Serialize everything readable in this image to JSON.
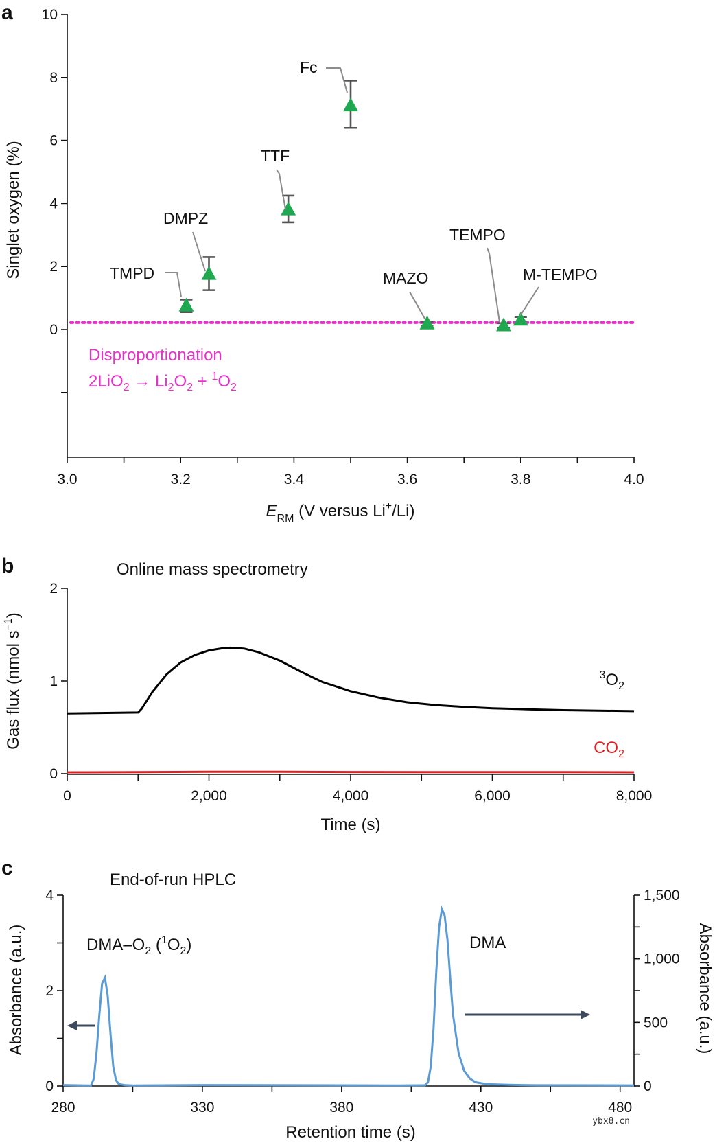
{
  "panels": {
    "a": "a",
    "b": "b",
    "c": "c"
  },
  "watermark": "ybx8.cn",
  "chart_data": [
    {
      "id": "a",
      "type": "scatter",
      "xlabel_main": "E",
      "xlabel_sub": "RM",
      "xlabel_rest": " (V versus Li",
      "xlabel_sup": "+",
      "xlabel_end": "/Li)",
      "ylabel": "Singlet oxygen (%)",
      "xlim": [
        3.0,
        4.0
      ],
      "ylim": [
        -4,
        10
      ],
      "xticks": [
        3.0,
        3.1,
        3.2,
        3.3,
        3.4,
        3.5,
        3.6,
        3.7,
        3.8,
        3.9,
        4.0
      ],
      "xtick_labels": [
        "3.0",
        "",
        "3.2",
        "",
        "3.4",
        "",
        "3.6",
        "",
        "3.8",
        "",
        "4.0"
      ],
      "yticks": [
        -2,
        0,
        2,
        4,
        6,
        8,
        10
      ],
      "ytick_labels": [
        "",
        "0",
        "2",
        "4",
        "6",
        "8",
        "10"
      ],
      "points": [
        {
          "name": "TMPD",
          "x": 3.21,
          "y": 0.75,
          "err_lo": 0.55,
          "err_hi": 0.95
        },
        {
          "name": "DMPZ",
          "x": 3.25,
          "y": 1.75,
          "err_lo": 1.25,
          "err_hi": 2.3
        },
        {
          "name": "TTF",
          "x": 3.39,
          "y": 3.8,
          "err_lo": 3.4,
          "err_hi": 4.25
        },
        {
          "name": "Fc",
          "x": 3.5,
          "y": 7.1,
          "err_lo": 6.4,
          "err_hi": 7.9
        },
        {
          "name": "MAZO",
          "x": 3.635,
          "y": 0.18,
          "err_lo": 0.12,
          "err_hi": 0.24
        },
        {
          "name": "TEMPO",
          "x": 3.77,
          "y": 0.12,
          "err_lo": 0.05,
          "err_hi": 0.2
        },
        {
          "name": "M-TEMPO",
          "x": 3.8,
          "y": 0.3,
          "err_lo": 0.18,
          "err_hi": 0.4
        }
      ],
      "reference_line": {
        "y": 0.22,
        "color": "#e632c8",
        "style": "dotted"
      },
      "annotation_line1": "Disproportionation",
      "annotation_line2": {
        "p1": "2LiO",
        "s1": "2",
        "p2": " → Li",
        "s2": "2",
        "p3": "O",
        "s3": "2",
        "p4": " + ",
        "sup": "1",
        "p5": "O",
        "s5": "2"
      },
      "marker_color": "#1fa84f"
    },
    {
      "id": "b",
      "type": "line",
      "title": "Online mass spectrometry",
      "xlabel": "Time (s)",
      "ylabel_main": "Gas flux (nmol s",
      "ylabel_sup": "−1",
      "ylabel_end": ")",
      "xlim": [
        0,
        8000
      ],
      "ylim": [
        0,
        2
      ],
      "xticks": [
        0,
        1000,
        2000,
        3000,
        4000,
        5000,
        6000,
        7000,
        8000
      ],
      "xtick_labels": [
        "0",
        "",
        "2,000",
        "",
        "4,000",
        "",
        "6,000",
        "",
        "8,000"
      ],
      "yticks": [
        0,
        1,
        2
      ],
      "ytick_labels": [
        "0",
        "1",
        "2"
      ],
      "series": [
        {
          "name": "3O2",
          "label_sup": "3",
          "label_main": "O",
          "label_sub": "2",
          "color": "#000000",
          "x": [
            0,
            1000,
            1050,
            1200,
            1400,
            1600,
            1800,
            2000,
            2200,
            2300,
            2500,
            2700,
            3000,
            3300,
            3600,
            4000,
            4400,
            4800,
            5200,
            5600,
            6000,
            6500,
            7000,
            7500,
            8000
          ],
          "y": [
            0.65,
            0.66,
            0.7,
            0.88,
            1.07,
            1.2,
            1.28,
            1.33,
            1.355,
            1.36,
            1.35,
            1.31,
            1.22,
            1.1,
            0.99,
            0.89,
            0.82,
            0.77,
            0.74,
            0.72,
            0.705,
            0.695,
            0.685,
            0.68,
            0.675
          ]
        },
        {
          "name": "CO2",
          "label_main": "CO",
          "label_sub": "2",
          "color": "#e02020",
          "x": [
            0,
            1000,
            2000,
            3000,
            4000,
            5000,
            6000,
            7000,
            8000
          ],
          "y": [
            0.015,
            0.016,
            0.02,
            0.02,
            0.018,
            0.017,
            0.016,
            0.016,
            0.015
          ]
        }
      ]
    },
    {
      "id": "c",
      "type": "line",
      "title": "End-of-run HPLC",
      "xlabel": "Retention time (s)",
      "ylabel_left": "Absorbance (a.u.)",
      "ylabel_right": "Absorbance (a.u.)",
      "xlim": [
        280,
        485
      ],
      "ylim_left": [
        0,
        4
      ],
      "ylim_right": [
        0,
        1500
      ],
      "xticks": [
        280,
        305,
        330,
        355,
        380,
        405,
        430,
        455,
        480
      ],
      "xtick_labels": [
        "280",
        "",
        "330",
        "",
        "380",
        "",
        "430",
        "",
        "480"
      ],
      "yticks_left": [
        0,
        1,
        2,
        3,
        4
      ],
      "ytick_labels_left": [
        "0",
        "",
        "2",
        "",
        "4"
      ],
      "yticks_right": [
        0,
        250,
        500,
        750,
        1000,
        1250,
        1500
      ],
      "ytick_labels_right": [
        "0",
        "",
        "500",
        "",
        "1,000",
        "",
        "1,500"
      ],
      "peak1_label": {
        "p1": "DMA–O",
        "s1": "2",
        "p2": " (",
        "sup": "1",
        "p3": "O",
        "s3": "2",
        "p4": ")"
      },
      "peak2_label": "DMA",
      "series": [
        {
          "name": "DMA-O2 (1O2)",
          "axis": "left",
          "color": "#5b9bd5",
          "x": [
            280,
            290,
            291,
            292,
            293,
            294,
            295,
            296,
            297,
            298,
            299,
            300,
            302,
            305,
            330,
            380,
            400
          ],
          "y": [
            0.02,
            0.01,
            0.15,
            0.7,
            1.5,
            2.15,
            2.27,
            1.9,
            1.1,
            0.4,
            0.12,
            0.04,
            0.02,
            0.01,
            0.02,
            0.015,
            0.01
          ]
        },
        {
          "name": "DMA",
          "axis": "right",
          "color": "#5b9bd5",
          "x": [
            400,
            410,
            411,
            412,
            413,
            414,
            415,
            416,
            417,
            418,
            419,
            420,
            422,
            424,
            426,
            428,
            432,
            440,
            450,
            485
          ],
          "y": [
            4,
            6,
            30,
            150,
            450,
            900,
            1250,
            1390,
            1340,
            1150,
            850,
            560,
            260,
            120,
            60,
            30,
            15,
            9,
            6,
            5
          ]
        }
      ]
    }
  ]
}
